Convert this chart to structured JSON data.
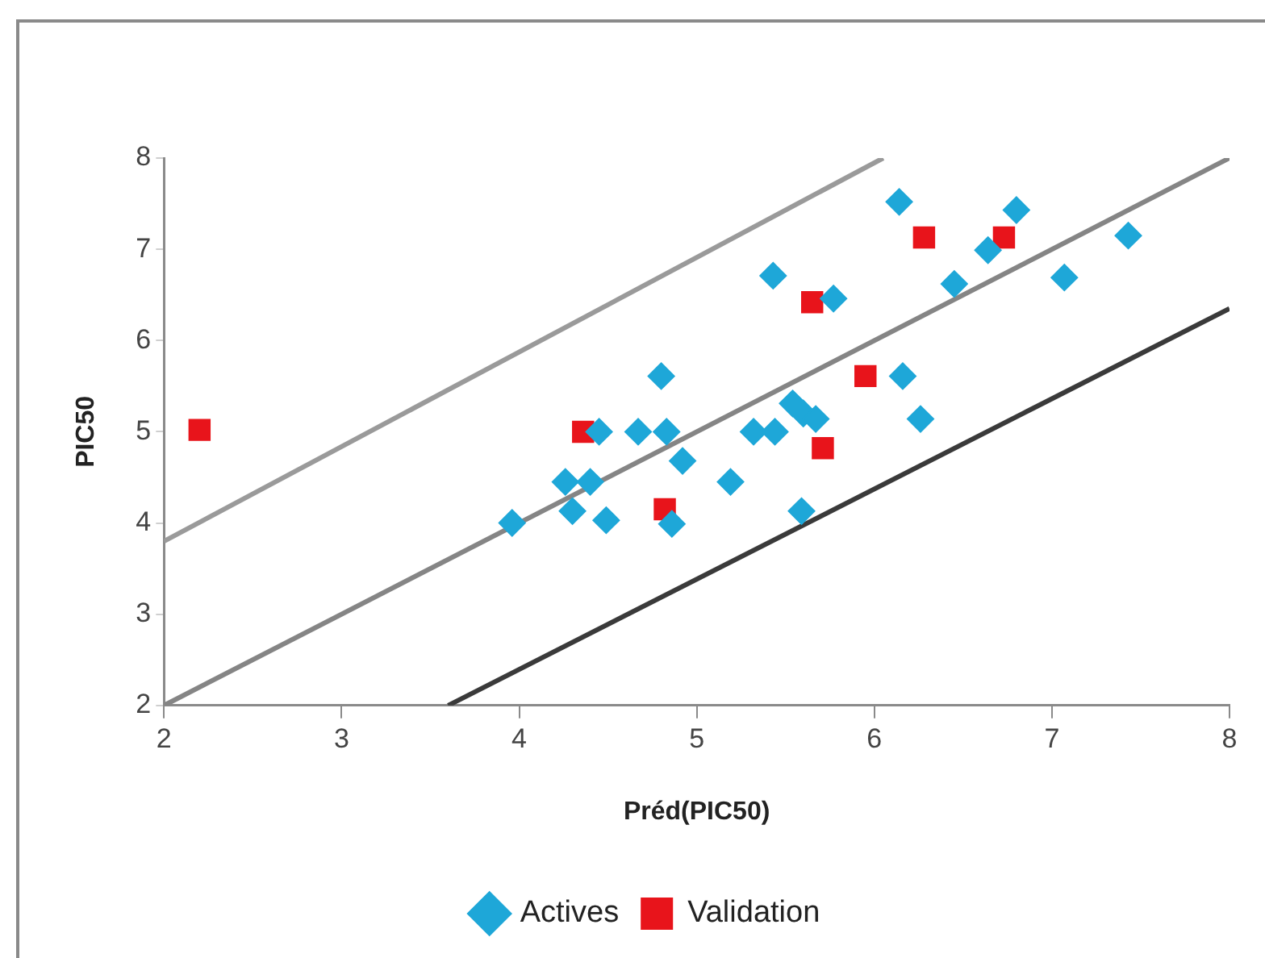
{
  "chart_data": {
    "type": "scatter",
    "xlabel": "Préd(PIC50)",
    "ylabel": "PIC50",
    "xlim": [
      2,
      8
    ],
    "ylim": [
      2,
      8
    ],
    "xticks": [
      2,
      3,
      4,
      5,
      6,
      7,
      8
    ],
    "yticks": [
      2,
      3,
      4,
      5,
      6,
      7,
      8
    ],
    "grid": false,
    "legend": "bottom",
    "series": [
      {
        "name": "Actives",
        "type": "scatter",
        "marker": "diamond",
        "color": "#1ea7d8",
        "x": [
          3.96,
          4.26,
          4.3,
          4.4,
          4.45,
          4.49,
          4.67,
          4.8,
          4.83,
          4.86,
          4.92,
          5.19,
          5.32,
          5.44,
          5.43,
          5.54,
          5.6,
          5.67,
          5.59,
          5.77,
          6.16,
          6.26,
          6.14,
          6.45,
          6.64,
          6.8,
          7.07,
          7.43
        ],
        "values": [
          4.0,
          4.45,
          4.13,
          4.45,
          5.0,
          4.03,
          5.0,
          5.61,
          5.0,
          3.99,
          4.68,
          4.45,
          5.0,
          5.0,
          6.71,
          5.31,
          5.2,
          5.14,
          4.13,
          6.46,
          5.61,
          5.14,
          7.52,
          6.62,
          6.99,
          7.43,
          6.69,
          7.15
        ]
      },
      {
        "name": "Validation",
        "type": "scatter",
        "marker": "square",
        "color": "#e8141b",
        "x": [
          2.2,
          4.36,
          4.82,
          5.65,
          5.95,
          5.71,
          6.28,
          6.73
        ],
        "values": [
          5.02,
          5.0,
          4.15,
          6.42,
          5.61,
          4.82,
          7.13,
          7.13
        ]
      },
      {
        "type": "line",
        "marker": "none",
        "color": "#9a9a9a",
        "x": [
          2,
          6.05
        ],
        "values": [
          3.8,
          8
        ]
      },
      {
        "type": "line",
        "marker": "none",
        "color": "#858585",
        "x": [
          2,
          8
        ],
        "values": [
          2,
          8
        ]
      },
      {
        "type": "line",
        "marker": "none",
        "color": "#3a3a3a",
        "x": [
          3.6,
          8
        ],
        "values": [
          2,
          6.35
        ]
      }
    ]
  }
}
